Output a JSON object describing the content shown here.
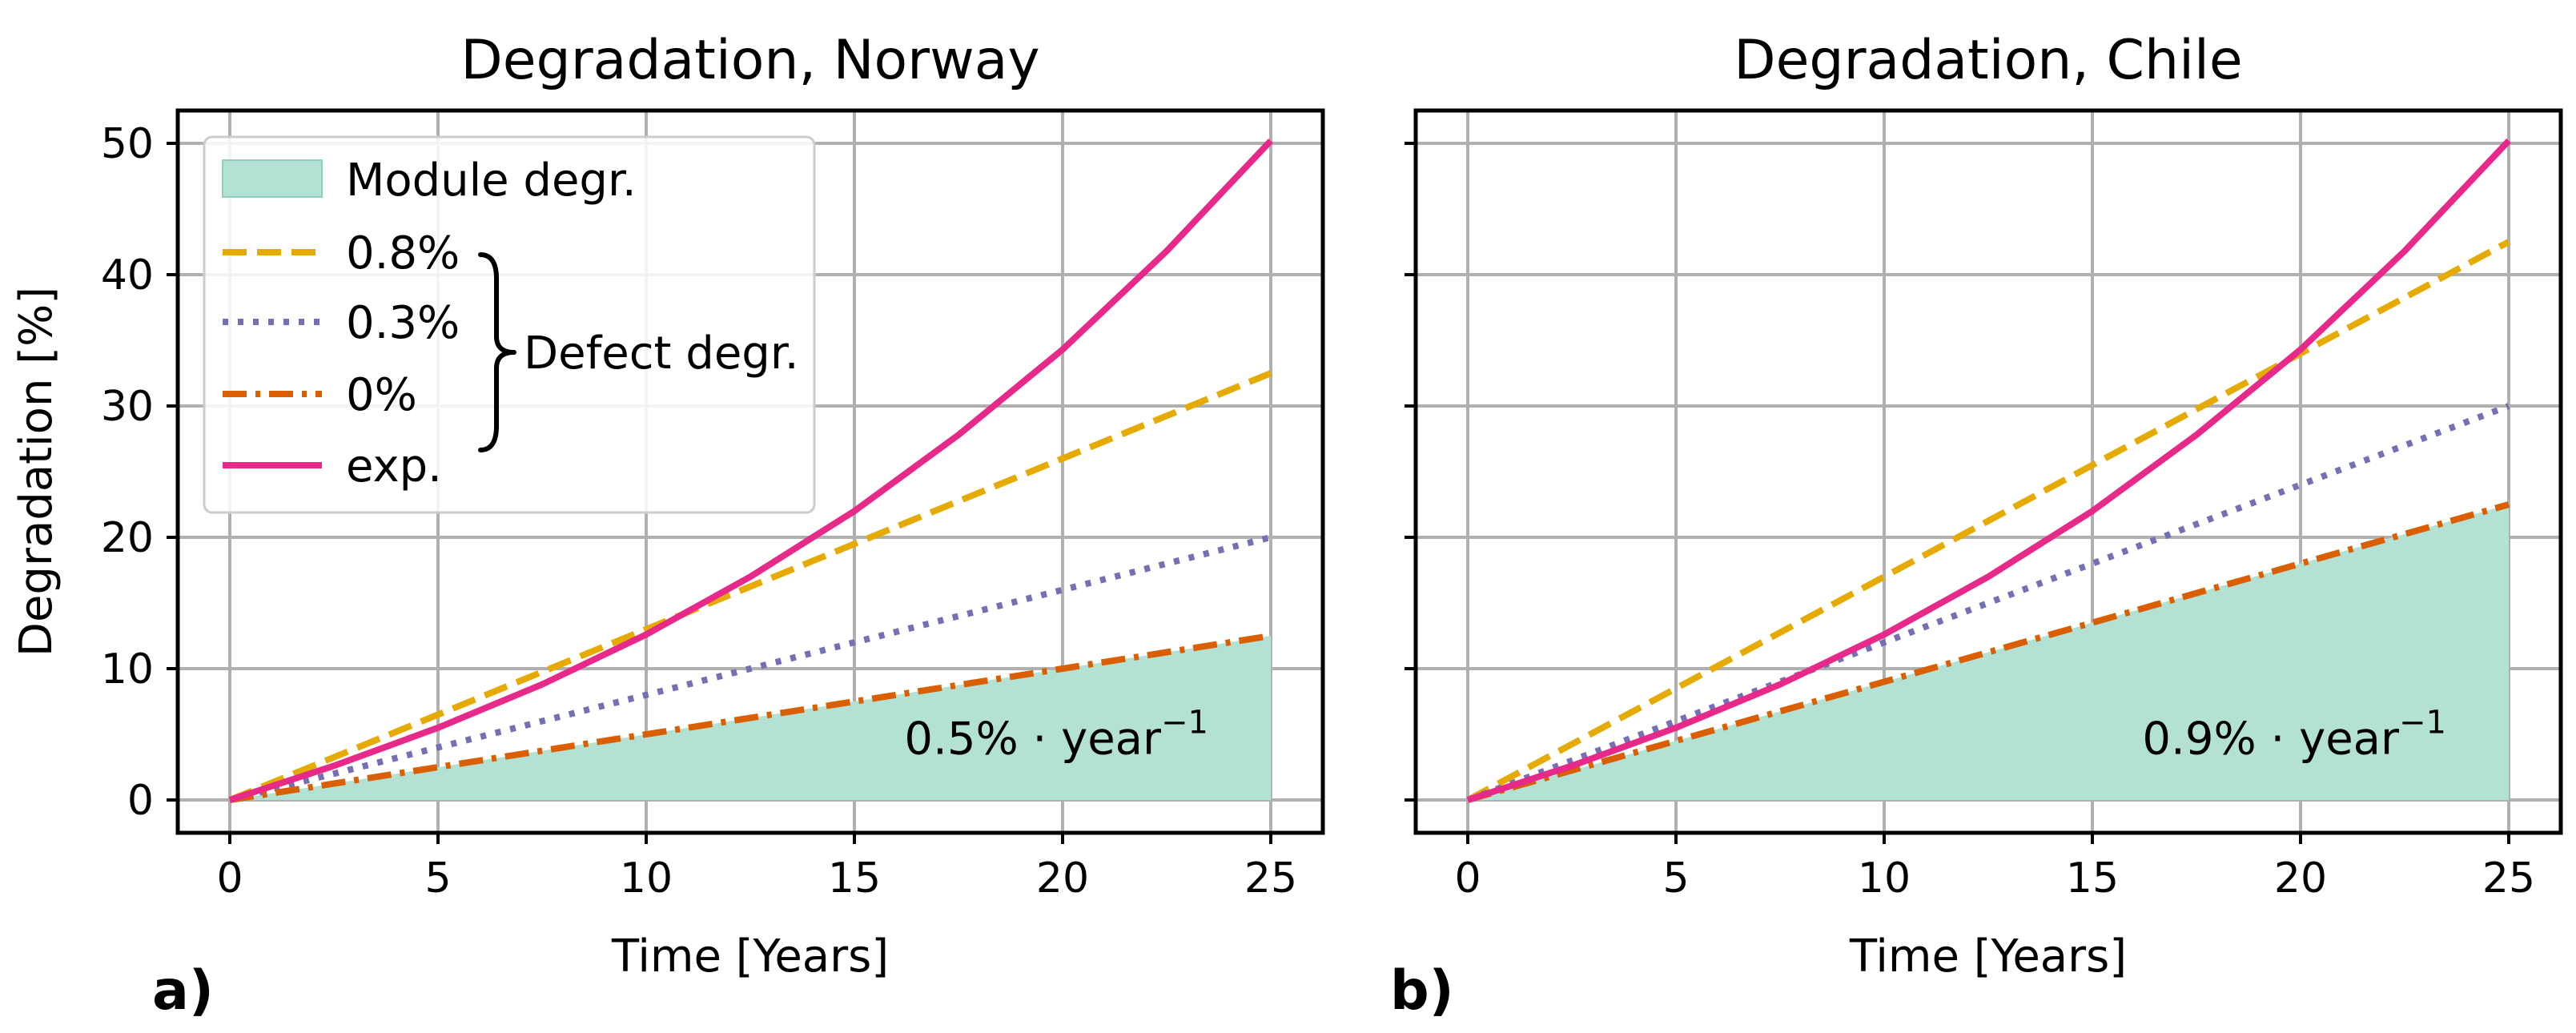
{
  "chart_data": [
    {
      "type": "line",
      "panel_label": "a)",
      "title": "Degradation, Norway",
      "xlabel": "Time [Years]",
      "ylabel": "Degradation [%]",
      "xlim": [
        -1.25,
        26.25
      ],
      "ylim": [
        -2.5,
        52.5
      ],
      "xticks": [
        0,
        5,
        10,
        15,
        20,
        25
      ],
      "yticks": [
        0,
        10,
        20,
        30,
        40,
        50
      ],
      "show_ytick_labels": true,
      "grid": true,
      "annotation": {
        "text": "0.5% · year",
        "superscript": "−1",
        "x": 16.2,
        "y": 3.5
      },
      "fill": {
        "name": "Module degr.",
        "color": "#b3e2d5",
        "x": [
          0,
          25
        ],
        "y": [
          0,
          12.5
        ]
      },
      "series": [
        {
          "name": "0.8%",
          "style": "dashed",
          "color": "#e6ab02",
          "x": [
            0,
            25
          ],
          "y": [
            0,
            32.5
          ]
        },
        {
          "name": "0.3%",
          "style": "dotted",
          "color": "#7570b3",
          "x": [
            0,
            25
          ],
          "y": [
            0,
            20
          ]
        },
        {
          "name": "0%",
          "style": "dashdot",
          "color": "#d95f02",
          "x": [
            0,
            25
          ],
          "y": [
            0,
            12.5
          ]
        },
        {
          "name": "exp.",
          "style": "solid",
          "color": "#e7298a",
          "x": [
            0,
            2.5,
            5,
            7.5,
            10,
            12.5,
            15,
            17.5,
            20,
            22.5,
            25
          ],
          "y": [
            0,
            2.6,
            5.5,
            8.8,
            12.6,
            17.0,
            22.0,
            27.8,
            34.3,
            41.8,
            50.2
          ]
        }
      ],
      "legend": {
        "position": "top-left",
        "entries": [
          "Module degr.",
          "0.8%",
          "0.3%",
          "0%",
          "exp."
        ],
        "bracket_label": "Defect degr."
      }
    },
    {
      "type": "line",
      "panel_label": "b)",
      "title": "Degradation, Chile",
      "xlabel": "Time [Years]",
      "ylabel": "",
      "xlim": [
        -1.25,
        26.25
      ],
      "ylim": [
        -2.5,
        52.5
      ],
      "xticks": [
        0,
        5,
        10,
        15,
        20,
        25
      ],
      "yticks": [
        0,
        10,
        20,
        30,
        40,
        50
      ],
      "show_ytick_labels": false,
      "grid": true,
      "annotation": {
        "text": "0.9% · year",
        "superscript": "−1",
        "x": 16.2,
        "y": 3.5
      },
      "fill": {
        "name": "Module degr.",
        "color": "#b3e2d5",
        "x": [
          0,
          25
        ],
        "y": [
          0,
          22.5
        ]
      },
      "series": [
        {
          "name": "0.8%",
          "style": "dashed",
          "color": "#e6ab02",
          "x": [
            0,
            25
          ],
          "y": [
            0,
            42.5
          ]
        },
        {
          "name": "0.3%",
          "style": "dotted",
          "color": "#7570b3",
          "x": [
            0,
            25
          ],
          "y": [
            0,
            30
          ]
        },
        {
          "name": "0%",
          "style": "dashdot",
          "color": "#d95f02",
          "x": [
            0,
            25
          ],
          "y": [
            0,
            22.5
          ]
        },
        {
          "name": "exp.",
          "style": "solid",
          "color": "#e7298a",
          "x": [
            0,
            2.5,
            5,
            7.5,
            10,
            12.5,
            15,
            17.5,
            20,
            22.5,
            25
          ],
          "y": [
            0,
            2.6,
            5.5,
            8.8,
            12.6,
            17.0,
            22.0,
            27.8,
            34.3,
            41.8,
            50.2
          ]
        }
      ]
    }
  ]
}
